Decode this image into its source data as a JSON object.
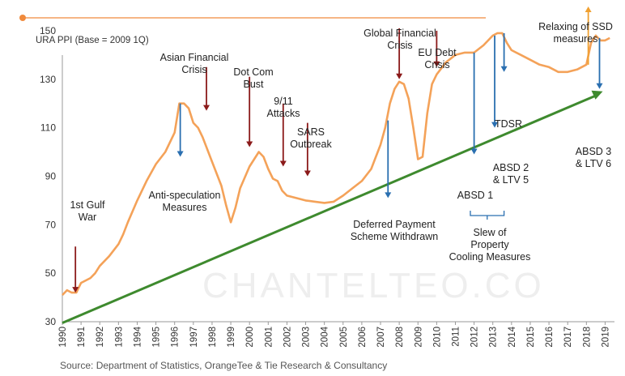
{
  "chart_data": {
    "type": "line",
    "ylabel": "URA PPI (Base = 2009 1Q)",
    "ylim": [
      30,
      160
    ],
    "yticks": [
      30,
      50,
      70,
      90,
      110,
      130,
      150
    ],
    "xlim": [
      1990,
      2019.5
    ],
    "xticks": [
      "1990",
      "1991",
      "1992",
      "1993",
      "1994",
      "1995",
      "1996",
      "1997",
      "1998",
      "1999",
      "2000",
      "2001",
      "2002",
      "2003",
      "2004",
      "2005",
      "2006",
      "2007",
      "2008",
      "2009",
      "2010",
      "2011",
      "2012",
      "2013",
      "2014",
      "2015",
      "2016",
      "2017",
      "2018",
      "2019"
    ],
    "grid": false,
    "series": [
      {
        "color": "#F4A259",
        "x": [
          1990.0,
          1990.25,
          1990.5,
          1990.75,
          1991.0,
          1991.25,
          1991.5,
          1991.75,
          1992.0,
          1992.5,
          1993.0,
          1993.25,
          1993.5,
          1994.0,
          1994.5,
          1995.0,
          1995.5,
          1996.0,
          1996.25,
          1996.5,
          1996.75,
          1997.0,
          1997.25,
          1997.5,
          1998.0,
          1998.5,
          1998.75,
          1999.0,
          1999.25,
          1999.5,
          2000.0,
          2000.5,
          2000.75,
          2001.0,
          2001.25,
          2001.5,
          2001.75,
          2002.0,
          2002.5,
          2003.0,
          2003.5,
          2004.0,
          2004.5,
          2005.0,
          2005.5,
          2006.0,
          2006.5,
          2007.0,
          2007.25,
          2007.5,
          2007.75,
          2008.0,
          2008.25,
          2008.5,
          2008.75,
          2009.0,
          2009.25,
          2009.5,
          2009.75,
          2010.0,
          2010.5,
          2011.0,
          2011.5,
          2012.0,
          2012.5,
          2013.0,
          2013.25,
          2013.5,
          2013.75,
          2014.0,
          2014.5,
          2015.0,
          2015.5,
          2016.0,
          2016.5,
          2017.0,
          2017.5,
          2018.0,
          2018.25,
          2018.5,
          2018.75,
          2019.0,
          2019.25
        ],
        "y": [
          41,
          43,
          42,
          42,
          46,
          47,
          48,
          50,
          53,
          57,
          62,
          66,
          71,
          80,
          88,
          95,
          100,
          108,
          120,
          120,
          118,
          112,
          110,
          106,
          96,
          86,
          78,
          71,
          77,
          85,
          94,
          100,
          98,
          93,
          89,
          88,
          84,
          82,
          81,
          80,
          79.5,
          79,
          79.5,
          82,
          85,
          88,
          93,
          103,
          110,
          120,
          126,
          129,
          128,
          122,
          110,
          97,
          98,
          116,
          128,
          132,
          137,
          140,
          141,
          141,
          144,
          148,
          149,
          149,
          145,
          142,
          140,
          138,
          136,
          135,
          133,
          133,
          134,
          136,
          145,
          148,
          146,
          146,
          147
        ]
      }
    ],
    "trend_line": {
      "color": "#3E8A2E",
      "from": [
        1990.0,
        29.5
      ],
      "to": [
        2018.7,
        124
      ]
    },
    "annotations": [
      {
        "text": "1st Gulf\nWar",
        "x": 1990.7,
        "arrow": "down",
        "color": "#8B1A1A",
        "from_y": 61,
        "to_y": 42
      },
      {
        "text": "Asian Financial\nCrisis",
        "x": 1997.7,
        "arrow": "down",
        "color": "#8B1A1A",
        "from_y": 135,
        "to_y": 117
      },
      {
        "text": "Anti-speculation\nMeasures",
        "x": 1996.3,
        "arrow": "down",
        "color": "#2A6FB0",
        "from_y": 120,
        "to_y": 98
      },
      {
        "text": "Dot Com\nBust",
        "x": 2000.0,
        "arrow": "down",
        "color": "#8B1A1A",
        "from_y": 131,
        "to_y": 102
      },
      {
        "text": "9/11\nAttacks",
        "x": 2001.8,
        "arrow": "down",
        "color": "#8B1A1A",
        "from_y": 120,
        "to_y": 94
      },
      {
        "text": "SARS\nOutbreak",
        "x": 2003.1,
        "arrow": "down",
        "color": "#8B1A1A",
        "from_y": 112,
        "to_y": 90
      },
      {
        "text": "Deferred Payment\nScheme Withdrawn",
        "x": 2007.4,
        "arrow": "down",
        "color": "#2A6FB0",
        "from_y": 113,
        "to_y": 81
      },
      {
        "text": "Global Financial\nCrisis",
        "x": 2008.0,
        "arrow": "down",
        "color": "#8B1A1A",
        "from_y": 151,
        "to_y": 130
      },
      {
        "text": "EU Debt\nCrisis",
        "x": 2010.0,
        "arrow": "down",
        "color": "#8B1A1A",
        "from_y": 150,
        "to_y": 135
      },
      {
        "text": "ABSD 1",
        "x": 2012.0,
        "arrow": "down",
        "color": "#2A6FB0",
        "from_y": 141,
        "to_y": 99
      },
      {
        "text": "ABSD 2\n& LTV 5",
        "x": 2013.1,
        "arrow": "down",
        "color": "#2A6FB0",
        "from_y": 148,
        "to_y": 110
      },
      {
        "text": "TDSR",
        "x": 2013.6,
        "arrow": "down",
        "color": "#2A6FB0",
        "from_y": 149,
        "to_y": 133
      },
      {
        "text": "ABSD 3\n& LTV 6",
        "x": 2018.7,
        "arrow": "down",
        "color": "#2A6FB0",
        "from_y": 147,
        "to_y": 126
      },
      {
        "text": "Relaxing of SSD\nmeasures",
        "x": 2018.1,
        "arrow": "up",
        "color": "#F0A030",
        "from_y": 136,
        "to_y": 160
      },
      {
        "text": "Slew of\nProperty\nCooling Measures",
        "x": 2012.9,
        "arrow": "bracket",
        "color": "#2A6FB0"
      }
    ]
  },
  "source": "Source: Department of Statistics, OrangeTee & Tie Research & Consultancy",
  "watermark": "CHANTELTEO.CO",
  "colors": {
    "accent_line": "#F08A3C",
    "series": "#F4A259",
    "trend": "#3E8A2E",
    "event_red": "#8B1A1A",
    "policy_blue": "#2A6FB0",
    "relax_orange": "#F0A030"
  }
}
